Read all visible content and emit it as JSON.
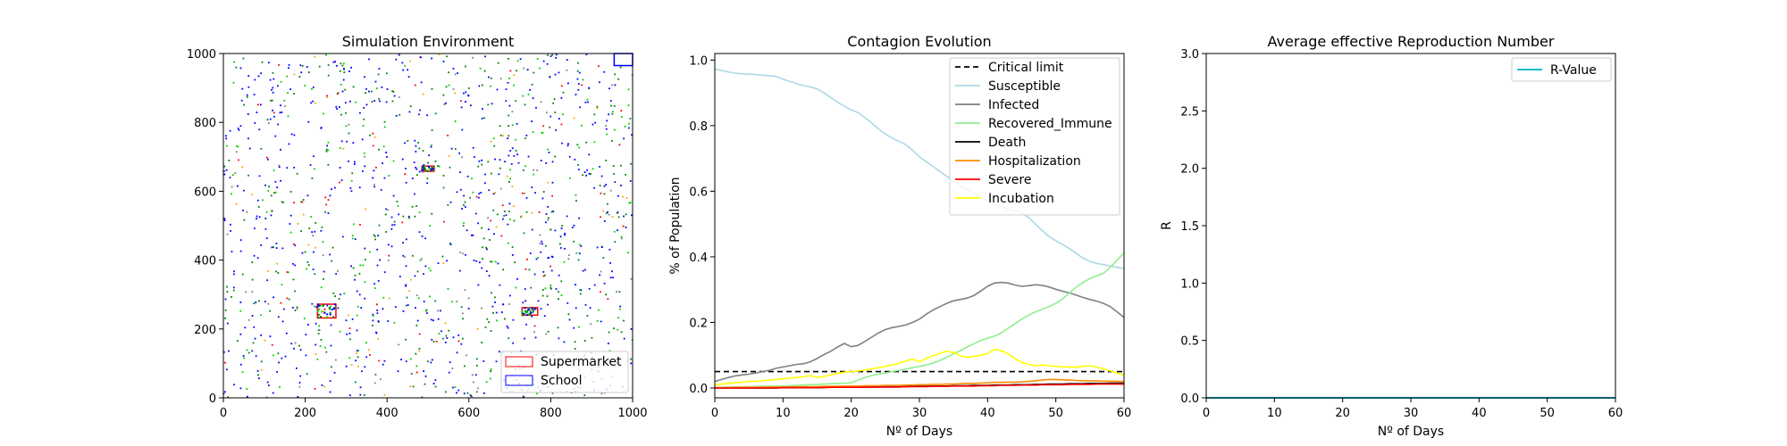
{
  "chart_data": [
    {
      "type": "scatter",
      "title": "Simulation Environment",
      "xlabel": "",
      "ylabel": "",
      "xlim": [
        0,
        1000
      ],
      "ylim": [
        0,
        1000
      ],
      "xticks": [
        0,
        200,
        400,
        600,
        800,
        1000
      ],
      "yticks": [
        0,
        200,
        400,
        600,
        800,
        1000
      ],
      "agent_colors": [
        "#0000ff",
        "#008000",
        "#00cc00",
        "#ffa500",
        "#808080",
        "#ff0000"
      ],
      "agent_count": 1400,
      "regions": [
        {
          "name": "Supermarket",
          "color": "#ff0000",
          "x0": 230,
          "x1": 275,
          "y0": 232,
          "y1": 272
        },
        {
          "name": "Supermarket",
          "color": "#ff0000",
          "x0": 730,
          "x1": 768,
          "y0": 240,
          "y1": 262
        },
        {
          "name": "Supermarket",
          "color": "#ff0000",
          "x0": 485,
          "x1": 515,
          "y0": 658,
          "y1": 673
        },
        {
          "name": "School",
          "color": "#0000ff",
          "x0": 955,
          "x1": 1000,
          "y0": 965,
          "y1": 1000
        }
      ],
      "legend": [
        {
          "label": "Supermarket",
          "color": "#ff0000"
        },
        {
          "label": "School",
          "color": "#0000ff"
        }
      ],
      "legend_position": "bottom-right"
    },
    {
      "type": "line",
      "title": "Contagion Evolution",
      "xlabel": "Nº of Days",
      "ylabel": "% of Population",
      "xlim": [
        0,
        60
      ],
      "ylim": [
        -0.03,
        1.02
      ],
      "xticks": [
        0,
        10,
        20,
        30,
        40,
        50,
        60
      ],
      "yticks": [
        "0.0",
        "0.2",
        "0.4",
        "0.6",
        "0.8",
        "1.0"
      ],
      "x": [
        0,
        1,
        2,
        3,
        4,
        5,
        6,
        7,
        8,
        9,
        10,
        11,
        12,
        13,
        14,
        15,
        16,
        17,
        18,
        19,
        20,
        21,
        22,
        23,
        24,
        25,
        26,
        27,
        28,
        29,
        30,
        31,
        32,
        33,
        34,
        35,
        36,
        37,
        38,
        39,
        40,
        41,
        42,
        43,
        44,
        45,
        46,
        47,
        48,
        49,
        50,
        51,
        52,
        53,
        54,
        55,
        56,
        57,
        58,
        59,
        60
      ],
      "hline": {
        "name": "Critical limit",
        "value": 0.05,
        "color": "#000000"
      },
      "series": [
        {
          "name": "Susceptible",
          "color": "#add8e6",
          "values": [
            0.973,
            0.968,
            0.964,
            0.96,
            0.958,
            0.957,
            0.956,
            0.954,
            0.952,
            0.95,
            0.942,
            0.935,
            0.928,
            0.922,
            0.918,
            0.912,
            0.9,
            0.886,
            0.872,
            0.859,
            0.848,
            0.84,
            0.825,
            0.808,
            0.79,
            0.775,
            0.762,
            0.752,
            0.742,
            0.725,
            0.705,
            0.69,
            0.676,
            0.66,
            0.646,
            0.631,
            0.618,
            0.606,
            0.594,
            0.582,
            0.571,
            0.561,
            0.553,
            0.546,
            0.54,
            0.533,
            0.52,
            0.5,
            0.48,
            0.462,
            0.449,
            0.438,
            0.425,
            0.41,
            0.396,
            0.386,
            0.38,
            0.376,
            0.372,
            0.368,
            0.364
          ]
        },
        {
          "name": "Infected",
          "color": "#808080",
          "values": [
            0.02,
            0.026,
            0.032,
            0.037,
            0.04,
            0.042,
            0.046,
            0.05,
            0.054,
            0.06,
            0.064,
            0.068,
            0.072,
            0.074,
            0.08,
            0.09,
            0.102,
            0.112,
            0.125,
            0.136,
            0.126,
            0.13,
            0.142,
            0.155,
            0.168,
            0.178,
            0.184,
            0.188,
            0.192,
            0.2,
            0.21,
            0.225,
            0.238,
            0.248,
            0.258,
            0.266,
            0.27,
            0.274,
            0.282,
            0.296,
            0.31,
            0.32,
            0.322,
            0.32,
            0.314,
            0.31,
            0.312,
            0.315,
            0.313,
            0.308,
            0.301,
            0.295,
            0.29,
            0.283,
            0.276,
            0.27,
            0.265,
            0.258,
            0.248,
            0.232,
            0.215
          ]
        },
        {
          "name": "Recovered_Immune",
          "color": "#90ee90",
          "values": [
            0.002,
            0.002,
            0.003,
            0.003,
            0.003,
            0.004,
            0.004,
            0.005,
            0.005,
            0.006,
            0.006,
            0.007,
            0.008,
            0.009,
            0.01,
            0.011,
            0.012,
            0.013,
            0.014,
            0.015,
            0.016,
            0.024,
            0.032,
            0.038,
            0.042,
            0.046,
            0.05,
            0.054,
            0.058,
            0.062,
            0.066,
            0.07,
            0.076,
            0.084,
            0.094,
            0.104,
            0.114,
            0.125,
            0.135,
            0.145,
            0.152,
            0.158,
            0.168,
            0.182,
            0.196,
            0.21,
            0.222,
            0.232,
            0.24,
            0.248,
            0.258,
            0.272,
            0.29,
            0.308,
            0.322,
            0.334,
            0.342,
            0.35,
            0.368,
            0.39,
            0.412
          ]
        },
        {
          "name": "Death",
          "color": "#000000",
          "values": [
            0,
            0,
            0,
            0,
            0,
            0,
            0,
            0,
            0,
            0,
            0.001,
            0.001,
            0.001,
            0.001,
            0.001,
            0.001,
            0.002,
            0.002,
            0.002,
            0.002,
            0.002,
            0.003,
            0.003,
            0.003,
            0.003,
            0.004,
            0.004,
            0.004,
            0.004,
            0.005,
            0.005,
            0.005,
            0.006,
            0.006,
            0.006,
            0.007,
            0.007,
            0.007,
            0.008,
            0.008,
            0.008,
            0.009,
            0.009,
            0.009,
            0.01,
            0.01,
            0.01,
            0.011,
            0.011,
            0.012,
            0.012,
            0.012,
            0.013,
            0.013,
            0.013,
            0.014,
            0.014,
            0.014,
            0.015,
            0.015,
            0.015
          ]
        },
        {
          "name": "Hospitalization",
          "color": "#ff8c00",
          "values": [
            0.001,
            0.001,
            0.001,
            0.002,
            0.002,
            0.002,
            0.002,
            0.003,
            0.003,
            0.003,
            0.003,
            0.003,
            0.004,
            0.004,
            0.004,
            0.004,
            0.005,
            0.005,
            0.005,
            0.006,
            0.006,
            0.006,
            0.007,
            0.007,
            0.007,
            0.008,
            0.008,
            0.008,
            0.009,
            0.009,
            0.01,
            0.01,
            0.011,
            0.011,
            0.012,
            0.012,
            0.013,
            0.014,
            0.014,
            0.015,
            0.016,
            0.017,
            0.017,
            0.018,
            0.018,
            0.019,
            0.02,
            0.022,
            0.024,
            0.026,
            0.026,
            0.025,
            0.024,
            0.023,
            0.022,
            0.022,
            0.022,
            0.021,
            0.021,
            0.02,
            0.02
          ]
        },
        {
          "name": "Severe",
          "color": "#ff0000",
          "values": [
            0,
            0,
            0,
            0,
            0,
            0,
            0,
            0,
            0,
            0,
            0.001,
            0.001,
            0.001,
            0.001,
            0.001,
            0.001,
            0.001,
            0.002,
            0.002,
            0.002,
            0.002,
            0.002,
            0.002,
            0.003,
            0.003,
            0.003,
            0.003,
            0.003,
            0.004,
            0.004,
            0.004,
            0.004,
            0.005,
            0.005,
            0.005,
            0.006,
            0.006,
            0.006,
            0.006,
            0.007,
            0.007,
            0.007,
            0.008,
            0.008,
            0.008,
            0.009,
            0.009,
            0.009,
            0.01,
            0.01,
            0.01,
            0.01,
            0.011,
            0.011,
            0.011,
            0.011,
            0.012,
            0.012,
            0.012,
            0.012,
            0.012
          ]
        },
        {
          "name": "Incubation",
          "color": "#ffff00",
          "values": [
            0.01,
            0.012,
            0.014,
            0.016,
            0.018,
            0.02,
            0.02,
            0.022,
            0.024,
            0.026,
            0.028,
            0.03,
            0.032,
            0.034,
            0.038,
            0.032,
            0.035,
            0.04,
            0.045,
            0.048,
            0.05,
            0.052,
            0.055,
            0.058,
            0.062,
            0.066,
            0.07,
            0.075,
            0.082,
            0.088,
            0.08,
            0.09,
            0.098,
            0.106,
            0.112,
            0.108,
            0.098,
            0.094,
            0.096,
            0.1,
            0.105,
            0.118,
            0.114,
            0.104,
            0.09,
            0.078,
            0.072,
            0.068,
            0.07,
            0.068,
            0.066,
            0.064,
            0.064,
            0.063,
            0.066,
            0.068,
            0.064,
            0.058,
            0.052,
            0.045,
            0.04
          ]
        }
      ],
      "legend_position": "top-right"
    },
    {
      "type": "line",
      "title": "Average effective Reproduction Number",
      "xlabel": "Nº of Days",
      "ylabel": "R",
      "xlim": [
        0,
        60
      ],
      "ylim": [
        0,
        3
      ],
      "xticks": [
        0,
        10,
        20,
        30,
        40,
        50,
        60
      ],
      "yticks": [
        "0.0",
        "0.5",
        "1.0",
        "1.5",
        "2.0",
        "2.5",
        "3.0"
      ],
      "series": [
        {
          "name": "R-Value",
          "color": "#17becf",
          "x": [
            0,
            60
          ],
          "values": [
            0,
            0
          ]
        }
      ],
      "legend_position": "top-right"
    }
  ]
}
